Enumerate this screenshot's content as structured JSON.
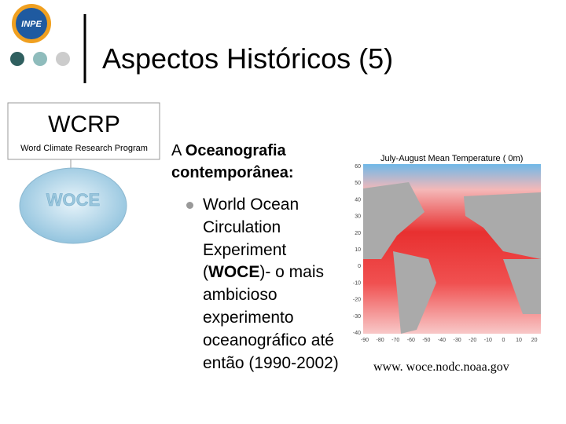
{
  "logo": {
    "text": "INPE"
  },
  "header": {
    "title": "Aspectos Históricos (5)"
  },
  "sidebar": {
    "acronym": "WCRP",
    "full_name": "Word Climate Research Program",
    "globe_text": "WOCE"
  },
  "content": {
    "heading": {
      "lead": "A ",
      "bold": "Oceanografia contemporânea:"
    },
    "bullet": {
      "before": "World Ocean Circulation Experiment (",
      "bold": "WOCE",
      "after": ")- o mais ambicioso experimento oceanográfico até então (1990-2002)"
    }
  },
  "map": {
    "title": "July-August Mean Temperature (  0m)",
    "yticks": [
      60,
      50,
      40,
      30,
      20,
      10,
      0,
      -10,
      -20,
      -30,
      -40
    ],
    "xticks": [
      -90,
      -80,
      -70,
      -60,
      -50,
      -40,
      -30,
      -20,
      -10,
      0,
      10,
      20
    ],
    "source": "www. woce.nodc.noaa.gov"
  }
}
